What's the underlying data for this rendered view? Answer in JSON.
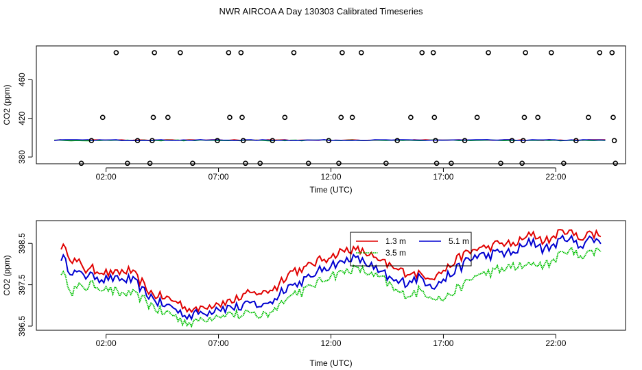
{
  "title": "NWR AIRCOA A  Day 130303  Calibrated Timeseries",
  "chart_data": [
    {
      "type": "scatter",
      "xlabel": "Time (UTC)",
      "ylabel": "CO2 (ppm)",
      "x_ticks": [
        "02:00",
        "07:00",
        "12:00",
        "17:00",
        "22:00"
      ],
      "x_tick_hours": [
        2,
        7,
        12,
        17,
        22
      ],
      "y_ticks": [
        380,
        420,
        460
      ],
      "xlim_hours": [
        -1.1,
        25.1
      ],
      "ylim": [
        373,
        495
      ],
      "points_marker": "open-circle",
      "points": [
        [
          0.9,
          373.5
        ],
        [
          1.35,
          397
        ],
        [
          1.85,
          421
        ],
        [
          2.45,
          488
        ],
        [
          2.95,
          373.5
        ],
        [
          3.4,
          397
        ],
        [
          3.95,
          373.5
        ],
        [
          4.05,
          397
        ],
        [
          4.1,
          421
        ],
        [
          4.15,
          488
        ],
        [
          4.75,
          421
        ],
        [
          5.3,
          488
        ],
        [
          5.85,
          373.5
        ],
        [
          6.95,
          397
        ],
        [
          7.5,
          421
        ],
        [
          7.45,
          488
        ],
        [
          8.0,
          488
        ],
        [
          8.05,
          421
        ],
        [
          8.1,
          397
        ],
        [
          8.2,
          373.5
        ],
        [
          8.85,
          373.5
        ],
        [
          9.4,
          397
        ],
        [
          9.95,
          421
        ],
        [
          10.35,
          488
        ],
        [
          11.0,
          373.5
        ],
        [
          11.9,
          397
        ],
        [
          12.35,
          373.5
        ],
        [
          12.45,
          421
        ],
        [
          12.5,
          488
        ],
        [
          12.95,
          421
        ],
        [
          13.35,
          488
        ],
        [
          14.45,
          373.5
        ],
        [
          14.95,
          397
        ],
        [
          15.55,
          421
        ],
        [
          16.05,
          488
        ],
        [
          16.55,
          488
        ],
        [
          16.6,
          421
        ],
        [
          16.65,
          397
        ],
        [
          16.7,
          373.5
        ],
        [
          17.35,
          373.5
        ],
        [
          17.95,
          397
        ],
        [
          18.5,
          421
        ],
        [
          19.0,
          488
        ],
        [
          19.55,
          373.5
        ],
        [
          20.05,
          397
        ],
        [
          20.5,
          373.5
        ],
        [
          20.55,
          397
        ],
        [
          20.6,
          421
        ],
        [
          20.65,
          488
        ],
        [
          21.2,
          421
        ],
        [
          21.8,
          488
        ],
        [
          22.35,
          373.5
        ],
        [
          22.9,
          397
        ],
        [
          23.45,
          421
        ],
        [
          23.95,
          488
        ],
        [
          24.5,
          488
        ],
        [
          24.55,
          421
        ],
        [
          24.6,
          397
        ],
        [
          24.65,
          373.5
        ]
      ],
      "series_colors": [
        "#e00000",
        "#00c000",
        "#0000d0"
      ],
      "series_level": 397.5
    },
    {
      "type": "line",
      "xlabel": "Time (UTC)",
      "ylabel": "CO2 (ppm)",
      "x_ticks": [
        "02:00",
        "07:00",
        "12:00",
        "17:00",
        "22:00"
      ],
      "x_tick_hours": [
        2,
        7,
        12,
        17,
        22
      ],
      "y_ticks": [
        "396.5",
        "397.5",
        "398.5"
      ],
      "y_tick_values": [
        396.5,
        397.5,
        398.5
      ],
      "xlim_hours": [
        -1.1,
        25.1
      ],
      "ylim": [
        396.4,
        399.05
      ],
      "x_hours": [
        0.0,
        0.5,
        1.0,
        1.5,
        2.0,
        2.5,
        3.0,
        3.5,
        4.0,
        4.5,
        5.0,
        5.5,
        6.0,
        6.5,
        7.0,
        7.5,
        8.0,
        8.5,
        9.0,
        9.5,
        10.0,
        10.5,
        11.0,
        11.5,
        12.0,
        12.5,
        13.0,
        13.5,
        14.0,
        14.5,
        15.0,
        15.5,
        16.0,
        16.5,
        17.0,
        17.5,
        18.0,
        18.5,
        19.0,
        19.5,
        20.0,
        20.5,
        21.0,
        21.5,
        22.0,
        22.5,
        23.0,
        23.5,
        24.0
      ],
      "series": [
        {
          "name": "1.3 m",
          "color": "#e00000",
          "values": [
            398.45,
            398.15,
            397.9,
            397.85,
            397.8,
            397.8,
            397.85,
            397.6,
            397.3,
            397.2,
            397.15,
            396.95,
            396.9,
            397.0,
            397.05,
            397.1,
            397.2,
            397.3,
            397.3,
            397.4,
            397.75,
            397.85,
            397.95,
            398.1,
            398.2,
            398.3,
            398.35,
            398.3,
            398.1,
            398.0,
            397.85,
            397.8,
            397.75,
            397.7,
            397.85,
            398.05,
            398.25,
            398.35,
            398.4,
            398.5,
            398.45,
            398.6,
            398.75,
            398.55,
            398.7,
            398.85,
            398.65,
            398.75,
            398.7
          ]
        },
        {
          "name": "3.5 m",
          "color": "#00c000",
          "values": [
            397.8,
            397.35,
            397.45,
            397.5,
            397.4,
            397.3,
            397.3,
            397.2,
            397.0,
            396.85,
            396.75,
            396.6,
            396.6,
            396.7,
            396.75,
            396.8,
            396.75,
            396.8,
            396.75,
            396.9,
            397.2,
            397.3,
            397.4,
            397.55,
            397.75,
            397.8,
            397.9,
            397.8,
            397.7,
            397.55,
            397.3,
            397.25,
            397.35,
            397.25,
            397.15,
            397.35,
            397.55,
            397.75,
            397.8,
            397.85,
            397.95,
            397.9,
            398.05,
            397.95,
            398.15,
            398.35,
            398.2,
            398.3,
            398.35
          ]
        },
        {
          "name": "5.1 m",
          "color": "#0000d0",
          "values": [
            398.2,
            397.8,
            397.75,
            397.7,
            397.65,
            397.6,
            397.65,
            397.45,
            397.2,
            397.0,
            396.95,
            396.75,
            396.8,
            396.85,
            396.95,
            396.95,
            396.95,
            397.05,
            397.0,
            397.15,
            397.45,
            397.55,
            397.65,
            397.85,
            398.0,
            398.05,
            398.15,
            398.05,
            397.85,
            397.7,
            397.55,
            397.6,
            397.65,
            397.5,
            397.6,
            397.85,
            398.05,
            398.2,
            398.2,
            398.3,
            398.25,
            398.4,
            398.55,
            398.35,
            398.5,
            398.65,
            398.45,
            398.6,
            398.6
          ]
        }
      ],
      "legend_position": "top-center"
    }
  ]
}
